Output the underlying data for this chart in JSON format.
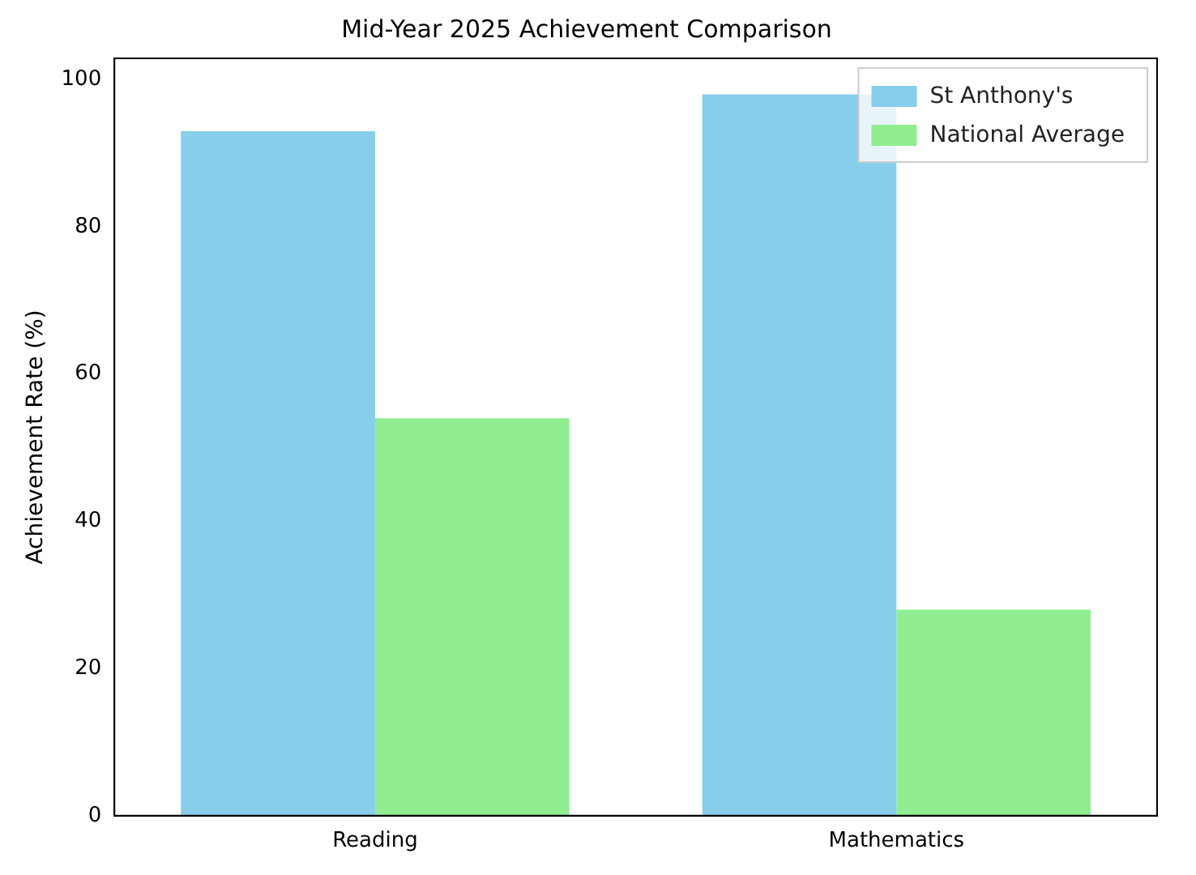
{
  "chart_data": {
    "type": "bar",
    "title": "Mid-Year 2025 Achievement Comparison",
    "ylabel": "Achievement Rate (%)",
    "categories": [
      "Reading",
      "Mathematics"
    ],
    "series": [
      {
        "name": "St Anthony's",
        "color": "#87ceeb",
        "values": [
          93,
          98
        ]
      },
      {
        "name": "National Average",
        "color": "#90ee90",
        "values": [
          54,
          28
        ]
      }
    ],
    "ylim": [
      0,
      102.9
    ],
    "yticks": [
      0,
      20,
      40,
      60,
      80,
      100
    ],
    "grid": false,
    "legend": "top right"
  }
}
